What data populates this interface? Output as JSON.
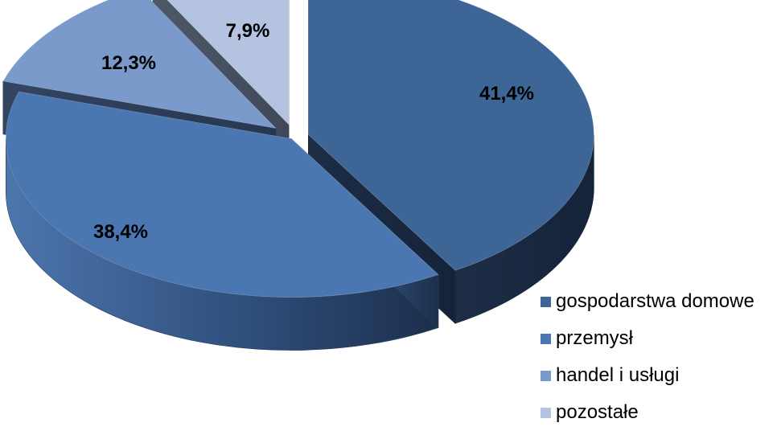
{
  "chart_data": {
    "type": "pie",
    "title": "",
    "labels": [
      "gospodarstwa domowe",
      "przemysł",
      "handel i usługi",
      "pozostałe"
    ],
    "values": [
      41.4,
      38.4,
      12.3,
      7.9
    ],
    "value_labels": [
      "41,4%",
      "38,4%",
      "12,3%",
      "7,9%"
    ],
    "colors": [
      "#3d6596",
      "#4a77b1",
      "#7a9acb",
      "#b4c3e0"
    ],
    "style": "3d-exploded",
    "legend_position": "bottom-right"
  }
}
